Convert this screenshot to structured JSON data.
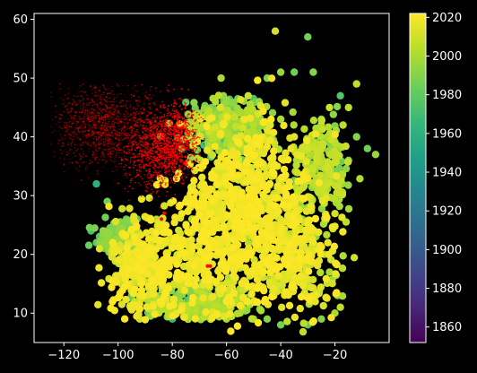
{
  "chart_data": {
    "type": "scatter",
    "title": "",
    "xlabel": "",
    "ylabel": "",
    "xlim": [
      -131,
      0
    ],
    "ylim": [
      5,
      61
    ],
    "x_ticks": [
      -120,
      -100,
      -80,
      -60,
      -40,
      -20
    ],
    "y_ticks": [
      10,
      20,
      30,
      40,
      50,
      60
    ],
    "background": "#000000",
    "axis_color": "#ffffff",
    "grid": false,
    "legend": "none",
    "colorbar": {
      "label": "",
      "min": 1852,
      "max": 2022,
      "ticks": [
        1860,
        1880,
        1900,
        1920,
        1940,
        1960,
        1980,
        2000,
        2020
      ],
      "colormap": "viridis",
      "stops": [
        "#440154",
        "#482878",
        "#3e4989",
        "#31688e",
        "#26828e",
        "#1f9e89",
        "#35b779",
        "#6ece58",
        "#b5de2b",
        "#fde725"
      ]
    },
    "series": [
      {
        "marker": "circle",
        "color_by": "year",
        "points": [
          [
            -42,
            58,
            2010
          ],
          [
            -30,
            57,
            1985
          ],
          [
            -62,
            50,
            2000
          ],
          [
            -45,
            50,
            1990
          ],
          [
            -40,
            51,
            1995
          ],
          [
            -35,
            51,
            1985
          ],
          [
            -28,
            51,
            1990
          ],
          [
            -12,
            49,
            2005
          ],
          [
            -18,
            47,
            1975
          ],
          [
            -22,
            45,
            2010
          ],
          [
            -15,
            45,
            2005
          ],
          [
            -25,
            43,
            1990
          ],
          [
            -17,
            42,
            2005
          ],
          [
            -12,
            40,
            1990
          ],
          [
            -8,
            38,
            1985
          ],
          [
            -5,
            37,
            1995
          ],
          [
            -15,
            36,
            1990
          ],
          [
            -20,
            33,
            2000
          ],
          [
            -25,
            30,
            2005
          ],
          [
            -30,
            28,
            1995
          ],
          [
            -108,
            32,
            1960
          ],
          [
            -104,
            29,
            1985
          ],
          [
            -97,
            26,
            1980
          ],
          [
            -93,
            26,
            1975
          ],
          [
            -110,
            24,
            1970
          ],
          [
            -108,
            22,
            1980
          ],
          [
            -105,
            21,
            1975
          ],
          [
            -100,
            21,
            1985
          ],
          [
            -95,
            13,
            1975
          ],
          [
            -88,
            12,
            1990
          ],
          [
            -80,
            9,
            1965
          ],
          [
            -75,
            10,
            1970
          ],
          [
            -70,
            10,
            1985
          ],
          [
            -60,
            9,
            2000
          ],
          [
            -50,
            9,
            1990
          ],
          [
            -40,
            8,
            1985
          ],
          [
            -30,
            8,
            1980
          ],
          [
            -25,
            9,
            1990
          ],
          [
            -20,
            10,
            2000
          ],
          [
            -18,
            11,
            2005
          ],
          [
            -19,
            13,
            1990
          ],
          [
            -22,
            17,
            2000
          ],
          [
            -24,
            20,
            1995
          ],
          [
            -27,
            23,
            1990
          ],
          [
            -32,
            26,
            1985
          ],
          [
            -92,
            9,
            2010
          ],
          [
            -85,
            10,
            2005
          ],
          [
            -65,
            11,
            1995
          ],
          [
            -55,
            10,
            2000
          ],
          [
            -45,
            9,
            1990
          ],
          [
            -55,
            44,
            2000
          ],
          [
            -48,
            46,
            1995
          ],
          [
            -52,
            47,
            2010
          ],
          [
            -65,
            45,
            1975
          ],
          [
            -70,
            44,
            1990
          ],
          [
            -75,
            42,
            2005
          ],
          [
            -35,
            40,
            2015
          ],
          [
            -30,
            38,
            2010
          ],
          [
            -40,
            43,
            2000
          ],
          [
            -60,
            46,
            1995
          ]
        ],
        "clouds": [
          {
            "center": [
              -62,
              22
            ],
            "spread": [
              26,
              12
            ],
            "count": 500,
            "year_range": [
              2005,
              2022
            ]
          },
          {
            "center": [
              -50,
              32
            ],
            "spread": [
              22,
              12
            ],
            "count": 400,
            "year_range": [
              2000,
              2022
            ]
          },
          {
            "center": [
              -90,
              18
            ],
            "spread": [
              14,
              8
            ],
            "count": 300,
            "year_range": [
              1995,
              2022
            ]
          },
          {
            "center": [
              -35,
              20
            ],
            "spread": [
              16,
              10
            ],
            "count": 300,
            "year_range": [
              1990,
              2022
            ]
          },
          {
            "center": [
              -70,
              12
            ],
            "spread": [
              20,
              3
            ],
            "count": 250,
            "year_range": [
              1970,
              2005
            ]
          },
          {
            "center": [
              -60,
              42
            ],
            "spread": [
              16,
              5
            ],
            "count": 250,
            "year_range": [
              1960,
              2005
            ]
          },
          {
            "center": [
              -25,
              35
            ],
            "spread": [
              10,
              8
            ],
            "count": 200,
            "year_range": [
              1975,
              2010
            ]
          },
          {
            "center": [
              -100,
              23
            ],
            "spread": [
              8,
              3
            ],
            "count": 120,
            "year_range": [
              1965,
              1995
            ]
          }
        ]
      },
      {
        "marker": "small-dot",
        "color": "#ff0000",
        "region": {
          "x_range": [
            -125,
            -68
          ],
          "y_range": [
            25,
            49
          ]
        },
        "clouds": [
          {
            "center": [
              -105,
              42
            ],
            "spread": [
              15,
              6
            ],
            "count": 1400,
            "alpha": [
              0.15,
              0.6
            ]
          },
          {
            "center": [
              -85,
              38
            ],
            "spread": [
              10,
              6
            ],
            "count": 1000,
            "alpha": [
              0.5,
              1.0
            ]
          },
          {
            "center": [
              -78,
              40
            ],
            "spread": [
              6,
              5
            ],
            "count": 600,
            "alpha": [
              0.7,
              1.0
            ]
          }
        ],
        "points": [
          [
            -67,
            18
          ],
          [
            -66,
            18
          ],
          [
            -83,
            27
          ],
          [
            -84,
            26
          ]
        ]
      }
    ]
  }
}
